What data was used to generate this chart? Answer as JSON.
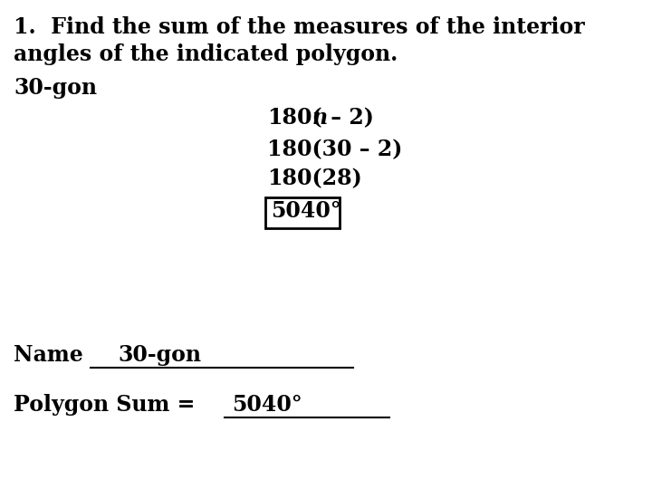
{
  "background_color": "#ffffff",
  "title_line1": "1.  Find the sum of the measures of the interior",
  "title_line2": "angles of the indicated polygon.",
  "polygon_label": "30-gon",
  "formula_line2": "180(30 – 2)",
  "formula_line3": "180(28)",
  "formula_line4": "5040°",
  "name_label": "Name",
  "name_value": "30-gon",
  "polysum_label": "Polygon Sum = ",
  "polysum_value": "5040°",
  "font_size": 17,
  "text_color": "#000000",
  "fig_width": 7.2,
  "fig_height": 5.4,
  "dpi": 100
}
